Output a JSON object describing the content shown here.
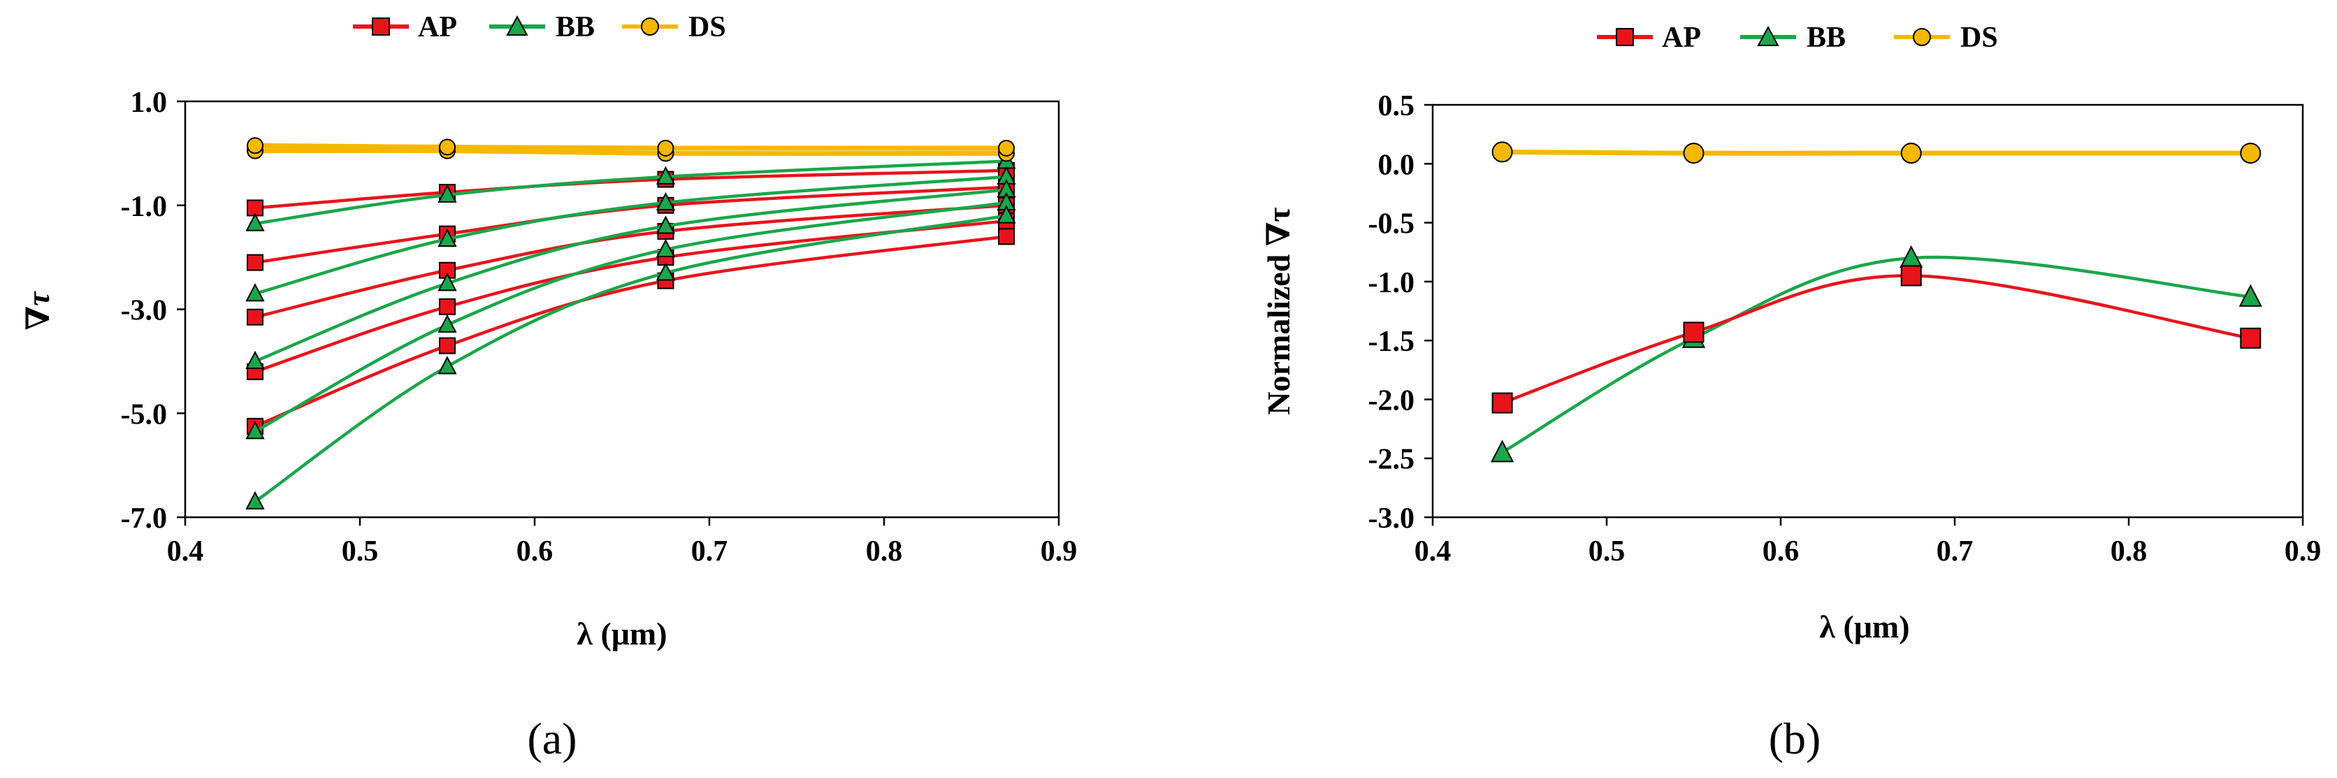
{
  "colors": {
    "AP": "#e8141c",
    "BB": "#1aa64a",
    "DS": "#f5b800",
    "marker_border": "#000000"
  },
  "icons": {
    "AP": "square-marker-icon",
    "BB": "triangle-marker-icon",
    "DS": "circle-marker-icon"
  },
  "chart_data": [
    {
      "type": "line",
      "panel_label": "(a)",
      "title": "",
      "xlabel": "λ (μm)",
      "ylabel": "∇τ",
      "xlim": [
        0.4,
        0.9
      ],
      "ylim": [
        -7.0,
        1.0
      ],
      "xticks": [
        0.4,
        0.5,
        0.6,
        0.7,
        0.8,
        0.9
      ],
      "xtick_labels": [
        "0.4",
        "0.5",
        "0.6",
        "0.7",
        "0.8",
        "0.9"
      ],
      "yticks": [
        1.0,
        -1.0,
        -3.0,
        -5.0,
        -7.0
      ],
      "ytick_labels": [
        "1.0",
        "-1.0",
        "-3.0",
        "-5.0",
        "-7.0"
      ],
      "legend": {
        "position": "top",
        "entries": [
          "AP",
          "BB",
          "DS"
        ]
      },
      "x": [
        0.44,
        0.55,
        0.675,
        0.87
      ],
      "series": [
        {
          "name": "AP",
          "group": "AP",
          "values": [
            -1.05,
            -0.75,
            -0.5,
            -0.33
          ]
        },
        {
          "name": "AP",
          "group": "AP",
          "values": [
            -2.1,
            -1.55,
            -1.0,
            -0.65
          ]
        },
        {
          "name": "AP",
          "group": "AP",
          "values": [
            -3.15,
            -2.25,
            -1.5,
            -1.0
          ]
        },
        {
          "name": "AP",
          "group": "AP",
          "values": [
            -4.2,
            -2.95,
            -2.0,
            -1.3
          ]
        },
        {
          "name": "AP",
          "group": "AP",
          "values": [
            -5.25,
            -3.7,
            -2.45,
            -1.6
          ]
        },
        {
          "name": "BB",
          "group": "BB",
          "values": [
            -1.35,
            -0.8,
            -0.45,
            -0.15
          ]
        },
        {
          "name": "BB",
          "group": "BB",
          "values": [
            -2.7,
            -1.65,
            -0.95,
            -0.45
          ]
        },
        {
          "name": "BB",
          "group": "BB",
          "values": [
            -4.0,
            -2.5,
            -1.4,
            -0.7
          ]
        },
        {
          "name": "BB",
          "group": "BB",
          "values": [
            -5.35,
            -3.3,
            -1.85,
            -0.95
          ]
        },
        {
          "name": "BB",
          "group": "BB",
          "values": [
            -6.7,
            -4.1,
            -2.3,
            -1.2
          ]
        },
        {
          "name": "DS",
          "group": "DS",
          "values": [
            0.05,
            0.05,
            0.0,
            0.0
          ]
        },
        {
          "name": "DS",
          "group": "DS",
          "values": [
            0.15,
            0.12,
            0.1,
            0.1
          ]
        }
      ]
    },
    {
      "type": "line",
      "panel_label": "(b)",
      "title": "",
      "xlabel": "λ (μm)",
      "ylabel": "Normalized ∇τ",
      "xlim": [
        0.4,
        0.9
      ],
      "ylim": [
        -3.0,
        0.5
      ],
      "xticks": [
        0.4,
        0.5,
        0.6,
        0.7,
        0.8,
        0.9
      ],
      "xtick_labels": [
        "0.4",
        "0.5",
        "0.6",
        "0.7",
        "0.8",
        "0.9"
      ],
      "yticks": [
        0.5,
        0.0,
        -0.5,
        -1.0,
        -1.5,
        -2.0,
        -2.5,
        -3.0
      ],
      "ytick_labels": [
        "0.5",
        "0.0",
        "-0.5",
        "-1.0",
        "-1.5",
        "-2.0",
        "-2.5",
        "-3.0"
      ],
      "legend": {
        "position": "top",
        "entries": [
          "AP",
          "BB",
          "DS"
        ]
      },
      "x": [
        0.44,
        0.55,
        0.675,
        0.87
      ],
      "series": [
        {
          "name": "AP",
          "group": "AP",
          "values": [
            -2.03,
            -1.43,
            -0.95,
            -1.48
          ]
        },
        {
          "name": "BB",
          "group": "BB",
          "values": [
            -2.45,
            -1.48,
            -0.8,
            -1.13
          ]
        },
        {
          "name": "DS",
          "group": "DS",
          "values": [
            0.1,
            0.09,
            0.09,
            0.09
          ]
        }
      ]
    }
  ]
}
